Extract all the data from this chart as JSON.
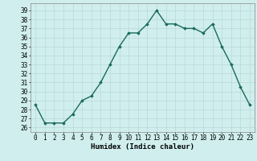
{
  "x": [
    0,
    1,
    2,
    3,
    4,
    5,
    6,
    7,
    8,
    9,
    10,
    11,
    12,
    13,
    14,
    15,
    16,
    17,
    18,
    19,
    20,
    21,
    22,
    23
  ],
  "y": [
    28.5,
    26.5,
    26.5,
    26.5,
    27.5,
    29.0,
    29.5,
    31.0,
    33.0,
    35.0,
    36.5,
    36.5,
    37.5,
    39.0,
    37.5,
    37.5,
    37.0,
    37.0,
    36.5,
    37.5,
    35.0,
    33.0,
    30.5,
    28.5
  ],
  "line_color": "#1a6b5a",
  "marker": "D",
  "marker_size": 1.8,
  "bg_color": "#d0eeee",
  "grid_color": "#b8d8d8",
  "xlabel": "Humidex (Indice chaleur)",
  "xlabel_fontsize": 6.5,
  "tick_fontsize": 5.5,
  "ylim": [
    25.5,
    39.8
  ],
  "yticks": [
    26,
    27,
    28,
    29,
    30,
    31,
    32,
    33,
    34,
    35,
    36,
    37,
    38,
    39
  ],
  "xticks": [
    0,
    1,
    2,
    3,
    4,
    5,
    6,
    7,
    8,
    9,
    10,
    11,
    12,
    13,
    14,
    15,
    16,
    17,
    18,
    19,
    20,
    21,
    22,
    23
  ],
  "linewidth": 1.0,
  "xlim": [
    -0.5,
    23.5
  ]
}
